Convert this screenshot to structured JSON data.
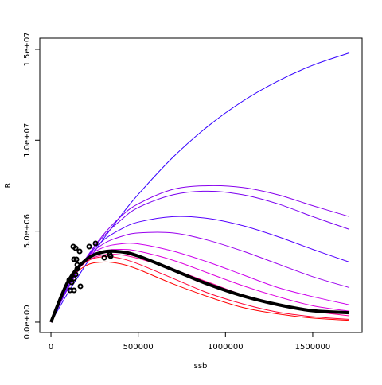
{
  "chart_data": {
    "type": "line",
    "x_label": "ssb",
    "y_label": "R",
    "xlim": [
      -64000,
      1783000
    ],
    "ylim": [
      -570000,
      15610000
    ],
    "xticks": [
      0,
      500000,
      1000000,
      1500000
    ],
    "yticks": [
      {
        "value": 0,
        "label": "0.0e+00"
      },
      {
        "value": 5000000,
        "label": "5.0e+06"
      },
      {
        "value": 10000000,
        "label": "1.0e+07"
      },
      {
        "value": 15000000,
        "label": "1.5e+07"
      }
    ],
    "x": [
      0,
      100000,
      200000,
      300000,
      400000,
      500000,
      700000,
      900000,
      1100000,
      1300000,
      1500000,
      1710000
    ],
    "series": [
      {
        "color": "#3300ff",
        "values": [
          0,
          1648000,
          3166000,
          4563000,
          5845000,
          7020000,
          9073000,
          10770000,
          12150000,
          13250000,
          14120000,
          14800000
        ]
      },
      {
        "color": "#8800ee",
        "values": [
          0,
          1900000,
          3500000,
          4800000,
          5800000,
          6500000,
          7300000,
          7500000,
          7400000,
          7000000,
          6400000,
          5800000
        ]
      },
      {
        "color": "#7a00f0",
        "values": [
          0,
          1900000,
          3500000,
          4700000,
          5600000,
          6300000,
          7000000,
          7200000,
          7000000,
          6500000,
          5800000,
          5100000
        ]
      },
      {
        "color": "#5500ff",
        "values": [
          0,
          2000000,
          3500000,
          4500000,
          5100000,
          5500000,
          5800000,
          5700000,
          5300000,
          4700000,
          4000000,
          3300000
        ]
      },
      {
        "color": "#9900ee",
        "values": [
          0,
          2100000,
          3500000,
          4300000,
          4700000,
          4900000,
          4900000,
          4500000,
          3900000,
          3200000,
          2500000,
          1900000
        ]
      },
      {
        "color": "#cc00ee",
        "values": [
          0,
          2200000,
          3500000,
          4100000,
          4300000,
          4300000,
          3900000,
          3300000,
          2600000,
          1900000,
          1400000,
          950000
        ]
      },
      {
        "color": "#dd00dd",
        "values": [
          0,
          2200000,
          3400000,
          3900000,
          4000000,
          3900000,
          3400000,
          2700000,
          2000000,
          1400000,
          900000,
          600000
        ]
      },
      {
        "color": "#ff0099",
        "values": [
          0,
          2200000,
          3300000,
          3700000,
          3700000,
          3500000,
          2900000,
          2200000,
          1500000,
          1000000,
          600000,
          350000
        ]
      },
      {
        "color": "#ff0033",
        "values": [
          0,
          2300000,
          3300000,
          3600000,
          3500000,
          3200000,
          2400000,
          1600000,
          1000000,
          550000,
          300000,
          150000
        ]
      },
      {
        "color": "#ff0000",
        "values": [
          0,
          2200000,
          3100000,
          3300000,
          3200000,
          2900000,
          2100000,
          1400000,
          800000,
          450000,
          220000,
          100000
        ]
      },
      {
        "color": "#000000",
        "values": [
          0,
          2277000,
          3424000,
          3858000,
          3866000,
          3632000,
          2870000,
          2084000,
          1439000,
          960000,
          625000,
          520000
        ]
      }
    ],
    "points": {
      "color": "#000000",
      "x": [
        127700,
        141400,
        164200,
        218900,
        255400,
        132200,
        145900,
        150500,
        141400,
        132200,
        118600,
        109400,
        132200,
        168700,
        104900,
        305500,
        337400,
        342000,
        150500
      ],
      "y": [
        4154000,
        4066000,
        3891000,
        4154000,
        4329000,
        3454000,
        3454000,
        2930000,
        2624000,
        2405000,
        2186000,
        1749000,
        1749000,
        1968000,
        2318000,
        3542000,
        3717000,
        3629000,
        3148000
      ]
    }
  }
}
